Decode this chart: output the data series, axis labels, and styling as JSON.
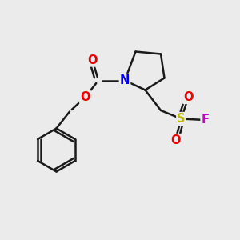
{
  "background_color": "#ebebeb",
  "bond_color": "#1a1a1a",
  "atom_colors": {
    "N": "#0000ee",
    "O": "#ee0000",
    "S": "#bbbb00",
    "F": "#cc00cc",
    "C": "#1a1a1a"
  },
  "bond_width": 1.8,
  "font_size": 10.5,
  "fig_bg": "#ebebeb"
}
